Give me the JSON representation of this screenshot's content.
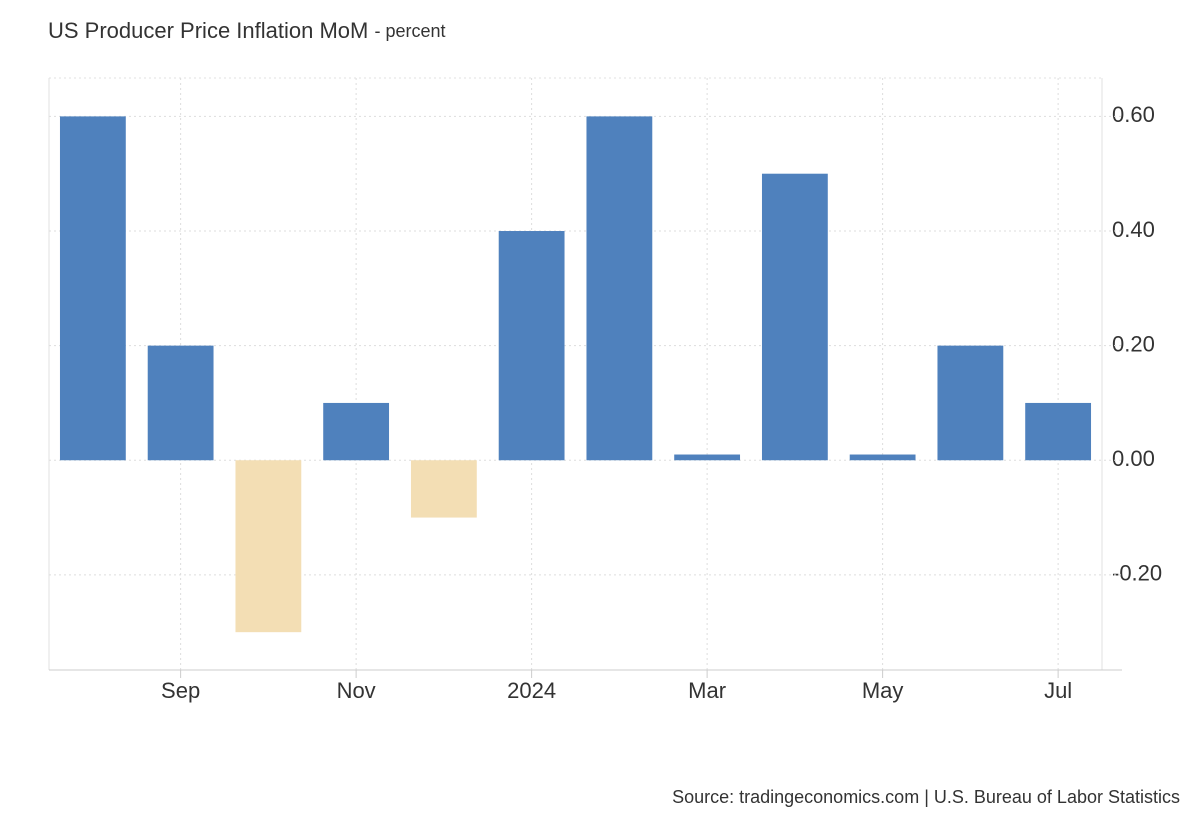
{
  "chart_data": {
    "type": "bar",
    "title": "US Producer Price Inflation MoM",
    "subtitle": "- percent",
    "source": "Source: tradingeconomics.com | U.S. Bureau of Labor Statistics",
    "categories": [
      null,
      "Sep",
      null,
      "Nov",
      null,
      "2024",
      null,
      "Mar",
      null,
      "May",
      null,
      "Jul"
    ],
    "values": [
      0.6,
      0.2,
      -0.3,
      0.1,
      -0.1,
      0.4,
      0.6,
      0.01,
      0.5,
      0.01,
      0.2,
      0.1
    ],
    "color": "#4f81bd",
    "negative_color": "#f3deb4",
    "ylim": [
      -0.366,
      0.667
    ],
    "yticks": [
      {
        "value": -0.2,
        "label": "-0.20"
      },
      {
        "value": 0,
        "label": "0.00"
      },
      {
        "value": 0.2,
        "label": "0.20"
      },
      {
        "value": 0.4,
        "label": "0.40"
      },
      {
        "value": 0.6,
        "label": "0.60"
      }
    ],
    "grid": true,
    "y_axis_side": "right"
  }
}
